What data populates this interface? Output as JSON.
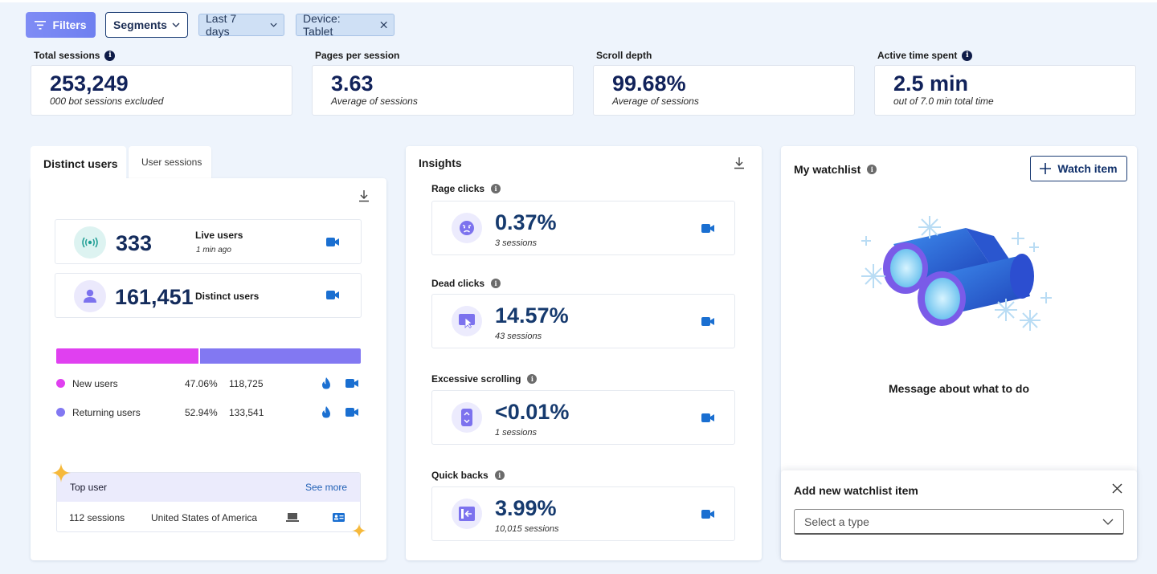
{
  "filters": {
    "filters_label": "Filters",
    "segments_label": "Segments",
    "period_label": "Last 7 days",
    "device_chip_label": "Device: Tablet"
  },
  "stats": [
    {
      "label": "Total sessions",
      "value": "253,249",
      "sub": "000 bot sessions excluded",
      "info": true
    },
    {
      "label": "Pages per session",
      "value": "3.63",
      "sub": "Average of sessions",
      "info": false
    },
    {
      "label": "Scroll depth",
      "value": "99.68%",
      "sub": "Average of sessions",
      "info": false
    },
    {
      "label": "Active time spent",
      "value": "2.5 min",
      "sub": "out of 7.0 min total time",
      "info": true
    }
  ],
  "users": {
    "tabs": [
      "Distinct users",
      "User sessions"
    ],
    "live": {
      "value": "333",
      "label": "Live users",
      "sub": "1 min ago"
    },
    "distinct": {
      "value": "161,451",
      "label": "Distinct users"
    },
    "split": {
      "new_fraction": 0.4706,
      "returning_fraction": 0.5294
    },
    "legend": [
      {
        "name": "New users",
        "pct": "47.06%",
        "count": "118,725",
        "color": "#e040f0"
      },
      {
        "name": "Returning users",
        "pct": "52.94%",
        "count": "133,541",
        "color": "#8278f2"
      }
    ],
    "top_user": {
      "title": "Top user",
      "see_more": "See more",
      "sessions": "112 sessions",
      "country": "United States of America"
    }
  },
  "insights": {
    "title": "Insights",
    "items": [
      {
        "label": "Rage clicks",
        "value": "0.37%",
        "sub": "3 sessions",
        "icon": "angry-face-icon"
      },
      {
        "label": "Dead clicks",
        "value": "14.57%",
        "sub": "43 sessions",
        "icon": "dead-click-icon"
      },
      {
        "label": "Excessive scrolling",
        "value": "<0.01%",
        "sub": "1 sessions",
        "icon": "scroll-icon"
      },
      {
        "label": "Quick backs",
        "value": "3.99%",
        "sub": "10,015 sessions",
        "icon": "quick-back-icon"
      }
    ]
  },
  "watchlist": {
    "title": "My watchlist",
    "watch_button": "Watch item",
    "message": "Message about what to do",
    "add_title": "Add new watchlist item",
    "select_placeholder": "Select a type"
  },
  "colors": {
    "primary_button": "#7283f3",
    "new_users": "#e040f0",
    "returning_users": "#8278f2",
    "camera": "#1a6fd1"
  }
}
